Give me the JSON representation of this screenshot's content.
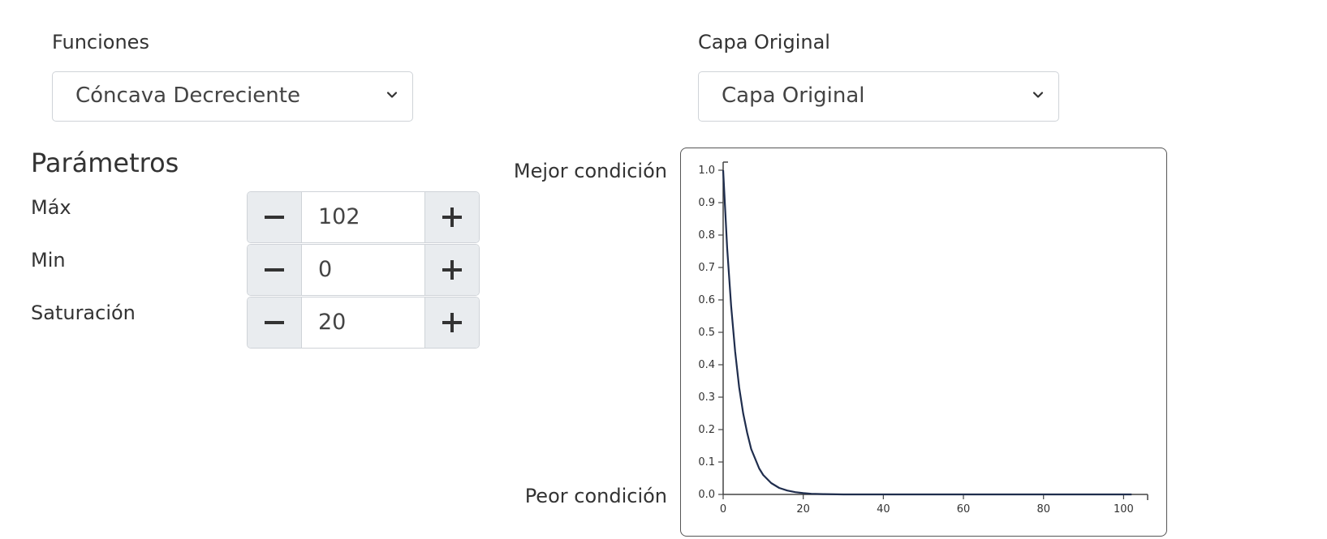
{
  "funciones": {
    "label": "Funciones",
    "selected": "Cóncava Decreciente",
    "icon": "chevron-down-icon"
  },
  "capa": {
    "label": "Capa Original",
    "selected": "Capa Original",
    "icon": "chevron-down-icon"
  },
  "parametros": {
    "heading": "Parámetros",
    "items": [
      {
        "label": "Máx",
        "value": "102"
      },
      {
        "label": "Min",
        "value": "0"
      },
      {
        "label": "Saturación",
        "value": "20"
      }
    ],
    "minus_icon": "minus-icon",
    "plus_icon": "plus-icon"
  },
  "chart_labels": {
    "best": "Mejor condición",
    "worst": "Peor condición"
  },
  "chart_data": {
    "type": "line",
    "x_ticks": [
      0,
      20,
      40,
      60,
      80,
      100
    ],
    "y_ticks": [
      0.0,
      0.1,
      0.2,
      0.3,
      0.4,
      0.5,
      0.6,
      0.7,
      0.8,
      0.9,
      1.0
    ],
    "y_tick_labels": [
      "0.0",
      "0.1",
      "0.2",
      "0.3",
      "0.4",
      "0.5",
      "0.6",
      "0.7",
      "0.8",
      "0.9",
      "1.0"
    ],
    "xlim": [
      0,
      102
    ],
    "ylim": [
      0,
      1
    ],
    "series": [
      {
        "color": "#1f2d4d",
        "x": [
          0,
          1,
          2,
          3,
          4,
          5,
          6,
          7,
          8,
          9,
          10,
          12,
          14,
          16,
          18,
          20,
          22,
          25,
          30,
          40,
          60,
          80,
          102
        ],
        "y": [
          1.0,
          0.76,
          0.58,
          0.44,
          0.33,
          0.25,
          0.19,
          0.14,
          0.11,
          0.08,
          0.06,
          0.035,
          0.02,
          0.012,
          0.007,
          0.004,
          0.002,
          0.001,
          0.0,
          0.0,
          0.0,
          0.0,
          0.0
        ]
      }
    ],
    "grid": false
  }
}
